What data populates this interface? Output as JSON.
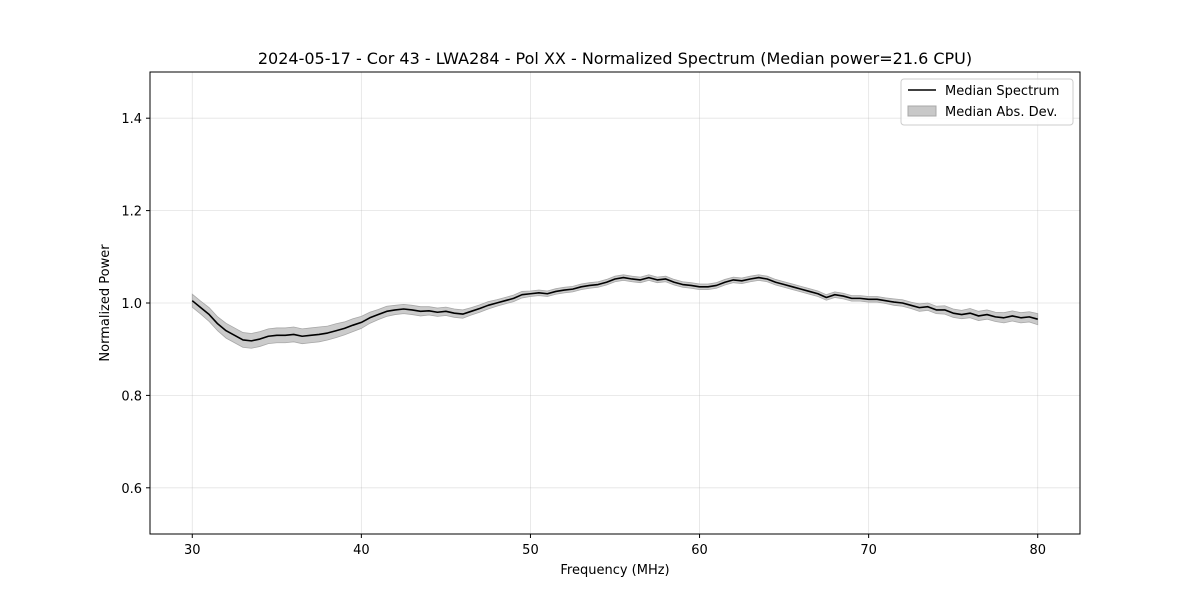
{
  "chart_data": {
    "type": "line",
    "title": "2024-05-17 - Cor 43 - LWA284 - Pol XX - Normalized Spectrum (Median power=21.6 CPU)",
    "xlabel": "Frequency (MHz)",
    "ylabel": "Normalized Power",
    "xlim": [
      27.5,
      82.5
    ],
    "ylim": [
      0.5,
      1.5
    ],
    "xticks": [
      30,
      40,
      50,
      60,
      70,
      80
    ],
    "yticks": [
      0.6,
      0.8,
      1.0,
      1.2,
      1.4
    ],
    "xtick_labels": [
      "30",
      "40",
      "50",
      "60",
      "70",
      "80"
    ],
    "ytick_labels": [
      "0.6",
      "0.8",
      "1.0",
      "1.2",
      "1.4"
    ],
    "grid": true,
    "legend_position": "top-right",
    "series": [
      {
        "name": "Median Spectrum",
        "color": "#000000",
        "x": [
          30,
          30.5,
          31,
          31.5,
          32,
          32.5,
          33,
          33.5,
          34,
          34.5,
          35,
          35.5,
          36,
          36.5,
          37,
          37.5,
          38,
          38.5,
          39,
          39.5,
          40,
          40.5,
          41,
          41.5,
          42,
          42.5,
          43,
          43.5,
          44,
          44.5,
          45,
          45.5,
          46,
          46.5,
          47,
          47.5,
          48,
          48.5,
          49,
          49.5,
          50,
          50.5,
          51,
          51.5,
          52,
          52.5,
          53,
          53.5,
          54,
          54.5,
          55,
          55.5,
          56,
          56.5,
          57,
          57.5,
          58,
          58.5,
          59,
          59.5,
          60,
          60.5,
          61,
          61.5,
          62,
          62.5,
          63,
          63.5,
          64,
          64.5,
          65,
          65.5,
          66,
          66.5,
          67,
          67.5,
          68,
          68.5,
          69,
          69.5,
          70,
          70.5,
          71,
          71.5,
          72,
          72.5,
          73,
          73.5,
          74,
          74.5,
          75,
          75.5,
          76,
          76.5,
          77,
          77.5,
          78,
          78.5,
          79,
          79.5,
          80
        ],
        "values": [
          1.005,
          0.99,
          0.975,
          0.955,
          0.94,
          0.93,
          0.92,
          0.918,
          0.922,
          0.928,
          0.93,
          0.93,
          0.932,
          0.928,
          0.93,
          0.932,
          0.935,
          0.94,
          0.945,
          0.952,
          0.958,
          0.968,
          0.975,
          0.982,
          0.985,
          0.987,
          0.985,
          0.982,
          0.983,
          0.98,
          0.982,
          0.978,
          0.976,
          0.982,
          0.988,
          0.995,
          1.0,
          1.005,
          1.01,
          1.018,
          1.02,
          1.022,
          1.02,
          1.025,
          1.028,
          1.03,
          1.035,
          1.038,
          1.04,
          1.045,
          1.052,
          1.055,
          1.052,
          1.05,
          1.055,
          1.05,
          1.052,
          1.045,
          1.04,
          1.038,
          1.035,
          1.035,
          1.038,
          1.045,
          1.05,
          1.048,
          1.052,
          1.055,
          1.052,
          1.045,
          1.04,
          1.035,
          1.03,
          1.025,
          1.02,
          1.012,
          1.018,
          1.015,
          1.01,
          1.01,
          1.008,
          1.008,
          1.005,
          1.002,
          1.0,
          0.995,
          0.99,
          0.992,
          0.985,
          0.985,
          0.978,
          0.975,
          0.978,
          0.972,
          0.975,
          0.97,
          0.968,
          0.972,
          0.968,
          0.97,
          0.965
        ]
      },
      {
        "name": "Median Abs. Dev.",
        "color": "#c8c8c8",
        "type": "band",
        "half_width": [
          0.014,
          0.014,
          0.015,
          0.015,
          0.016,
          0.016,
          0.016,
          0.016,
          0.016,
          0.016,
          0.016,
          0.016,
          0.016,
          0.016,
          0.016,
          0.016,
          0.015,
          0.015,
          0.014,
          0.014,
          0.013,
          0.012,
          0.011,
          0.011,
          0.01,
          0.01,
          0.01,
          0.01,
          0.009,
          0.009,
          0.009,
          0.009,
          0.009,
          0.008,
          0.008,
          0.008,
          0.007,
          0.007,
          0.007,
          0.007,
          0.006,
          0.006,
          0.006,
          0.006,
          0.006,
          0.006,
          0.006,
          0.006,
          0.006,
          0.006,
          0.006,
          0.006,
          0.006,
          0.006,
          0.006,
          0.006,
          0.006,
          0.006,
          0.006,
          0.006,
          0.006,
          0.006,
          0.006,
          0.006,
          0.006,
          0.006,
          0.006,
          0.006,
          0.006,
          0.006,
          0.006,
          0.006,
          0.006,
          0.006,
          0.006,
          0.006,
          0.006,
          0.006,
          0.006,
          0.006,
          0.006,
          0.006,
          0.006,
          0.007,
          0.007,
          0.007,
          0.008,
          0.008,
          0.008,
          0.009,
          0.009,
          0.009,
          0.01,
          0.01,
          0.01,
          0.01,
          0.011,
          0.011,
          0.011,
          0.011,
          0.012
        ]
      }
    ]
  }
}
